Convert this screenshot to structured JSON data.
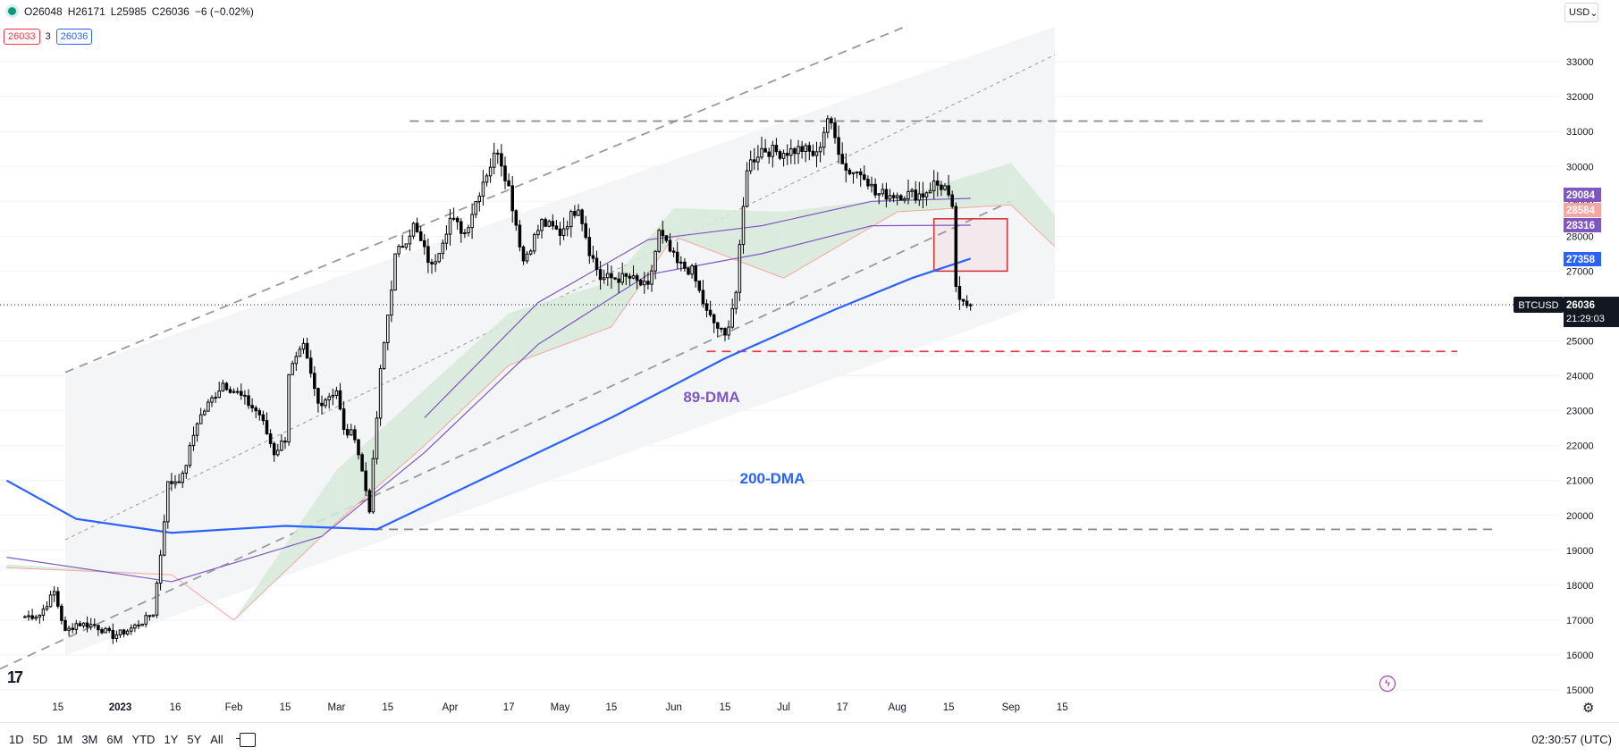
{
  "header": {
    "open": "O26048",
    "high": "H26171",
    "low": "L25985",
    "close": "C26036",
    "change": "−6 (−0.02%)",
    "bid": "26033",
    "spread": "3",
    "ask": "26036",
    "currency": "USD"
  },
  "bottom": {
    "ranges": [
      "1D",
      "5D",
      "1M",
      "3M",
      "6M",
      "YTD",
      "1Y",
      "5Y",
      "All"
    ],
    "clock": "02:30:57 (UTC)"
  },
  "colors": {
    "up": "#ffffff",
    "down": "#000000",
    "ma200": "#2962ff",
    "ma89": "#7e57c2",
    "cloud_green": "#d6ead9",
    "cloud_red": "#f9cdcf",
    "channel": "#f3f4f6",
    "support": "#f23645"
  },
  "icons": [
    "live-dot-icon",
    "calendar-icon",
    "tradingview-logo-icon",
    "lightning-icon",
    "gear-icon",
    "chevron-down-icon"
  ],
  "chart_data": {
    "type": "candlestick",
    "symbol": "BTCUSD",
    "title": "",
    "xlabel": "",
    "ylabel": "",
    "ylim": [
      15000,
      34000
    ],
    "yticks": [
      15000,
      16000,
      17000,
      18000,
      19000,
      20000,
      21000,
      22000,
      23000,
      24000,
      25000,
      26000,
      27000,
      28000,
      29000,
      30000,
      31000,
      32000,
      33000
    ],
    "xticks": [
      "15",
      "2023",
      "16",
      "Feb",
      "15",
      "Mar",
      "15",
      "Apr",
      "17",
      "May",
      "15",
      "Jun",
      "15",
      "Jul",
      "17",
      "Aug",
      "15",
      "Sep",
      "15"
    ],
    "annotations": [
      "89-DMA",
      "200-DMA"
    ],
    "last_price": {
      "symbol_label": "BTCUSD",
      "price": "26036",
      "countdown": "21:29:03"
    },
    "price_badges": [
      {
        "value": "29084",
        "color": "#7e57c2"
      },
      {
        "value": "28584",
        "color": "#f8a5a0"
      },
      {
        "value": "28316",
        "color": "#7e57c2"
      },
      {
        "value": "27358",
        "color": "#2962ff"
      }
    ],
    "levels": {
      "resistance": 31300,
      "support_low": 19600,
      "support_red": 24700
    },
    "grid": true,
    "legend": "none",
    "close_anchors": [
      [
        "2022-12-06",
        17100
      ],
      [
        "2022-12-10",
        17150
      ],
      [
        "2022-12-14",
        17800
      ],
      [
        "2022-12-17",
        16650
      ],
      [
        "2022-12-20",
        16900
      ],
      [
        "2022-12-25",
        16850
      ],
      [
        "2022-12-30",
        16550
      ],
      [
        "2023-01-03",
        16700
      ],
      [
        "2023-01-07",
        16950
      ],
      [
        "2023-01-10",
        17200
      ],
      [
        "2023-01-12",
        18900
      ],
      [
        "2023-01-14",
        20900
      ],
      [
        "2023-01-18",
        21100
      ],
      [
        "2023-01-22",
        22700
      ],
      [
        "2023-01-29",
        23800
      ],
      [
        "2023-02-02",
        23500
      ],
      [
        "2023-02-08",
        22900
      ],
      [
        "2023-02-12",
        21800
      ],
      [
        "2023-02-15",
        22200
      ],
      [
        "2023-02-16",
        24100
      ],
      [
        "2023-02-20",
        24800
      ],
      [
        "2023-02-24",
        23200
      ],
      [
        "2023-03-01",
        23600
      ],
      [
        "2023-03-03",
        22400
      ],
      [
        "2023-03-06",
        22300
      ],
      [
        "2023-03-10",
        20200
      ],
      [
        "2023-03-13",
        24100
      ],
      [
        "2023-03-17",
        27400
      ],
      [
        "2023-03-22",
        28300
      ],
      [
        "2023-03-27",
        27100
      ],
      [
        "2023-04-01",
        28500
      ],
      [
        "2023-04-05",
        28100
      ],
      [
        "2023-04-10",
        29600
      ],
      [
        "2023-04-14",
        30500
      ],
      [
        "2023-04-17",
        29400
      ],
      [
        "2023-04-21",
        27300
      ],
      [
        "2023-04-26",
        28400
      ],
      [
        "2023-05-01",
        28100
      ],
      [
        "2023-05-06",
        28900
      ],
      [
        "2023-05-09",
        27600
      ],
      [
        "2023-05-12",
        26800
      ],
      [
        "2023-05-20",
        26800
      ],
      [
        "2023-05-25",
        26500
      ],
      [
        "2023-05-28",
        28100
      ],
      [
        "2023-06-02",
        27200
      ],
      [
        "2023-06-06",
        27000
      ],
      [
        "2023-06-10",
        25800
      ],
      [
        "2023-06-15",
        25100
      ],
      [
        "2023-06-18",
        26400
      ],
      [
        "2023-06-21",
        30000
      ],
      [
        "2023-06-25",
        30500
      ],
      [
        "2023-06-30",
        30400
      ],
      [
        "2023-07-06",
        30500
      ],
      [
        "2023-07-10",
        30300
      ],
      [
        "2023-07-13",
        31400
      ],
      [
        "2023-07-18",
        29900
      ],
      [
        "2023-07-23",
        29800
      ],
      [
        "2023-07-26",
        29200
      ],
      [
        "2023-08-01",
        29200
      ],
      [
        "2023-08-08",
        29200
      ],
      [
        "2023-08-11",
        29500
      ],
      [
        "2023-08-14",
        29400
      ],
      [
        "2023-08-16",
        28700
      ],
      [
        "2023-08-17",
        26600
      ],
      [
        "2023-08-18",
        26050
      ],
      [
        "2023-08-21",
        26036
      ]
    ],
    "series": [
      {
        "name": "89-DMA",
        "points": [
          [
            "2022-12-01",
            18800
          ],
          [
            "2023-01-15",
            18100
          ],
          [
            "2023-02-25",
            19400
          ],
          [
            "2023-03-25",
            21800
          ],
          [
            "2023-04-25",
            24900
          ],
          [
            "2023-05-25",
            26900
          ],
          [
            "2023-06-25",
            27500
          ],
          [
            "2023-07-25",
            28300
          ],
          [
            "2023-08-21",
            28316
          ]
        ]
      },
      {
        "name": "200-DMA",
        "points": [
          [
            "2022-12-01",
            21000
          ],
          [
            "2022-12-20",
            19900
          ],
          [
            "2023-01-15",
            19500
          ],
          [
            "2023-02-15",
            19700
          ],
          [
            "2023-03-12",
            19600
          ],
          [
            "2023-04-15",
            21300
          ],
          [
            "2023-05-15",
            22800
          ],
          [
            "2023-06-15",
            24500
          ],
          [
            "2023-07-15",
            25900
          ],
          [
            "2023-08-05",
            26800
          ],
          [
            "2023-08-21",
            27358
          ]
        ]
      },
      {
        "points": [
          [
            "2023-03-25",
            22800
          ],
          [
            "2023-04-25",
            26100
          ],
          [
            "2023-05-25",
            27900
          ],
          [
            "2023-06-25",
            28300
          ],
          [
            "2023-07-25",
            29000
          ],
          [
            "2023-08-21",
            29084
          ]
        ]
      }
    ],
    "ichimoku": {
      "span_a": [
        [
          "2022-12-01",
          18600
        ],
        [
          "2023-01-15",
          18300
        ],
        [
          "2023-02-01",
          17000
        ],
        [
          "2023-03-01",
          21300
        ],
        [
          "2023-03-25",
          23600
        ],
        [
          "2023-04-17",
          25800
        ],
        [
          "2023-05-15",
          26700
        ],
        [
          "2023-06-01",
          28800
        ],
        [
          "2023-07-01",
          28700
        ],
        [
          "2023-08-01",
          29100
        ],
        [
          "2023-09-01",
          30100
        ],
        [
          "2023-09-13",
          28600
        ]
      ],
      "span_b": [
        [
          "2022-12-01",
          18500
        ],
        [
          "2023-01-15",
          18300
        ],
        [
          "2023-02-01",
          17000
        ],
        [
          "2023-03-01",
          19800
        ],
        [
          "2023-03-25",
          22000
        ],
        [
          "2023-04-17",
          24300
        ],
        [
          "2023-05-15",
          25400
        ],
        [
          "2023-06-01",
          28000
        ],
        [
          "2023-07-01",
          26800
        ],
        [
          "2023-08-01",
          28700
        ],
        [
          "2023-09-01",
          28900
        ],
        [
          "2023-09-13",
          27700
        ]
      ]
    }
  }
}
